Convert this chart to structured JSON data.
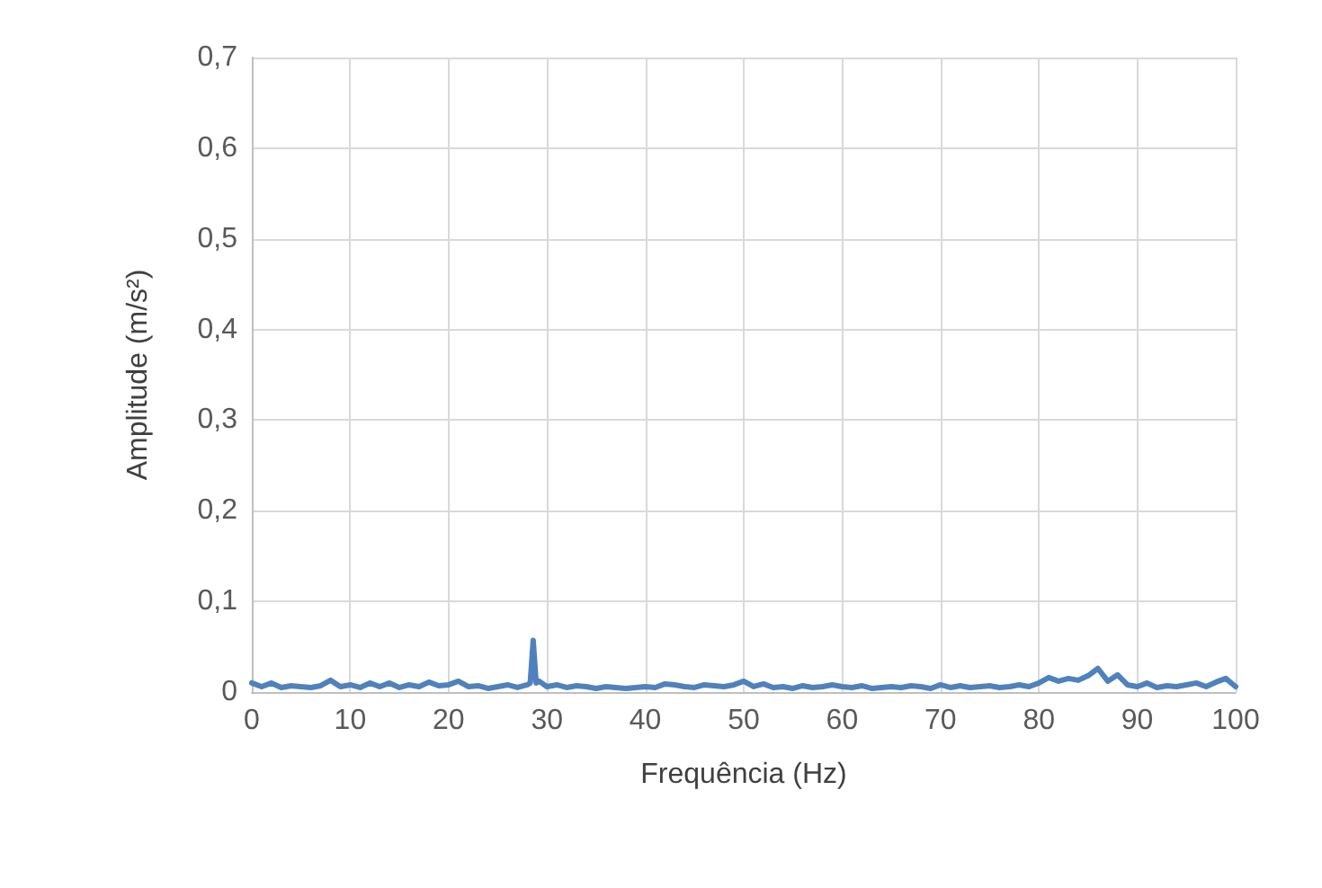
{
  "chart_data": {
    "type": "line",
    "xlabel": "Frequência (Hz)",
    "ylabel": "Amplitude (m/s²)",
    "xlim": [
      0,
      100
    ],
    "xticks": [
      0,
      10,
      20,
      30,
      40,
      50,
      60,
      70,
      80,
      90,
      100
    ],
    "ylim": [
      0,
      0.7
    ],
    "yticks": [
      {
        "value": 0,
        "label": "0"
      },
      {
        "value": 0.1,
        "label": "0,1"
      },
      {
        "value": 0.2,
        "label": "0,2"
      },
      {
        "value": 0.3,
        "label": "0,3"
      },
      {
        "value": 0.4,
        "label": "0,4"
      },
      {
        "value": 0.5,
        "label": "0,5"
      },
      {
        "value": 0.6,
        "label": "0,6"
      },
      {
        "value": 0.7,
        "label": "0,7"
      }
    ],
    "grid": true,
    "marker": "none",
    "line_style": "solid",
    "series": [
      {
        "color": "#4f81bd",
        "x": [
          0,
          1,
          2,
          3,
          4,
          5,
          6,
          7,
          8,
          9,
          10,
          11,
          12,
          13,
          14,
          15,
          16,
          17,
          18,
          19,
          20,
          21,
          22,
          23,
          24,
          25,
          26,
          27,
          28,
          28.3,
          28.6,
          28.9,
          29.2,
          30,
          31,
          32,
          33,
          34,
          35,
          36,
          37,
          38,
          39,
          40,
          41,
          42,
          43,
          44,
          45,
          46,
          47,
          48,
          49,
          50,
          51,
          52,
          53,
          54,
          55,
          56,
          57,
          58,
          59,
          60,
          61,
          62,
          63,
          64,
          65,
          66,
          67,
          68,
          69,
          70,
          71,
          72,
          73,
          74,
          75,
          76,
          77,
          78,
          79,
          80,
          81,
          82,
          83,
          84,
          85,
          86,
          87,
          88,
          89,
          90,
          91,
          92,
          93,
          94,
          95,
          96,
          97,
          98,
          99,
          100
        ],
        "values": [
          0.01,
          0.006,
          0.01,
          0.005,
          0.007,
          0.006,
          0.005,
          0.007,
          0.013,
          0.006,
          0.008,
          0.005,
          0.01,
          0.006,
          0.01,
          0.005,
          0.008,
          0.006,
          0.011,
          0.007,
          0.008,
          0.012,
          0.006,
          0.007,
          0.004,
          0.006,
          0.008,
          0.005,
          0.008,
          0.01,
          0.057,
          0.01,
          0.012,
          0.006,
          0.008,
          0.005,
          0.007,
          0.006,
          0.004,
          0.006,
          0.005,
          0.004,
          0.005,
          0.006,
          0.005,
          0.009,
          0.008,
          0.006,
          0.005,
          0.008,
          0.007,
          0.006,
          0.008,
          0.012,
          0.006,
          0.009,
          0.005,
          0.006,
          0.004,
          0.007,
          0.005,
          0.006,
          0.008,
          0.006,
          0.005,
          0.007,
          0.004,
          0.005,
          0.006,
          0.005,
          0.007,
          0.006,
          0.004,
          0.008,
          0.005,
          0.007,
          0.005,
          0.006,
          0.007,
          0.005,
          0.006,
          0.008,
          0.006,
          0.01,
          0.016,
          0.012,
          0.015,
          0.013,
          0.018,
          0.026,
          0.012,
          0.019,
          0.008,
          0.006,
          0.01,
          0.005,
          0.007,
          0.006,
          0.008,
          0.01,
          0.006,
          0.011,
          0.015,
          0.006
        ]
      }
    ]
  }
}
